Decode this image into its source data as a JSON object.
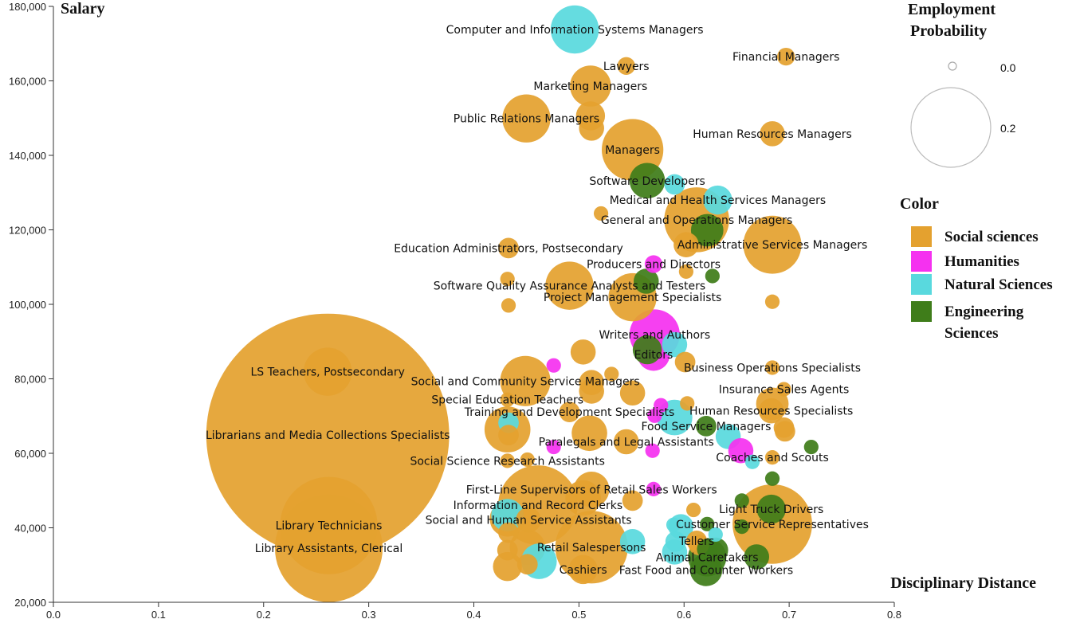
{
  "chart_data": {
    "type": "scatter",
    "title": "",
    "xlabel": "Disciplinary Distance",
    "ylabel": "Salary",
    "xlim": [
      0.0,
      0.8
    ],
    "ylim": [
      20000,
      180000
    ],
    "x_ticks": [
      0.0,
      0.1,
      0.2,
      0.3,
      0.4,
      0.5,
      0.6,
      0.7,
      0.8
    ],
    "x_tick_labels": [
      "0.0",
      "0.1",
      "0.2",
      "0.3",
      "0.4",
      "0.5",
      "0.6",
      "0.7",
      "0.8"
    ],
    "y_ticks": [
      20000,
      40000,
      60000,
      80000,
      100000,
      120000,
      140000,
      160000,
      180000
    ],
    "y_tick_labels": [
      "20,000",
      "40,000",
      "60,000",
      "80,000",
      "100,000",
      "120,000",
      "140,000",
      "160,000",
      "180,000"
    ],
    "grid": false,
    "legend": {
      "size_title_line1": "Employment",
      "size_title_line2": "Probability",
      "size_items": [
        {
          "label": "0.0",
          "value": 0.0
        },
        {
          "label": "0.2",
          "value": 0.2
        }
      ],
      "color_title": "Color",
      "color_items": [
        {
          "name": "Social sciences",
          "color": "#E4A12F"
        },
        {
          "name": "Humanities",
          "color": "#F531F0"
        },
        {
          "name": "Natural Sciences",
          "color": "#59D9DE"
        },
        {
          "name": "Engineering Sciences",
          "color": "#3F7D1A",
          "line1": "Engineering",
          "line2": "Sciences"
        }
      ]
    },
    "points": [
      {
        "name": "Librarians and Media Collections Specialists",
        "x": 0.261,
        "y": 64900,
        "p": 0.28,
        "c": "Social sciences"
      },
      {
        "name": "Library Technicians",
        "x": 0.262,
        "y": 40600,
        "p": 0.045,
        "c": "Social sciences"
      },
      {
        "name": "Library Assistants, Clerical",
        "x": 0.262,
        "y": 34500,
        "p": 0.055,
        "c": "Social sciences"
      },
      {
        "name": "LS Teachers, Postsecondary",
        "x": 0.261,
        "y": 81900,
        "p": 0.011,
        "c": "Social sciences"
      },
      {
        "name": "Computer and Information Systems Managers",
        "x": 0.496,
        "y": 173800,
        "p": 0.011,
        "c": "Natural Sciences"
      },
      {
        "name": "Lawyers",
        "x": 0.545,
        "y": 164000,
        "p": 0.0015,
        "c": "Social sciences"
      },
      {
        "name": "Financial Managers",
        "x": 0.697,
        "y": 166500,
        "p": 0.0015,
        "c": "Social sciences"
      },
      {
        "name": "Marketing Managers",
        "x": 0.511,
        "y": 158600,
        "p": 0.008,
        "c": "Social sciences"
      },
      {
        "name": "",
        "x": 0.511,
        "y": 150600,
        "p": 0.004,
        "c": "Social sciences"
      },
      {
        "name": "Public Relations Managers",
        "x": 0.45,
        "y": 149900,
        "p": 0.011,
        "c": "Social sciences"
      },
      {
        "name": "",
        "x": 0.512,
        "y": 147300,
        "p": 0.003,
        "c": "Social sciences"
      },
      {
        "name": "Human Resources Managers",
        "x": 0.684,
        "y": 145800,
        "p": 0.003,
        "c": "Social sciences"
      },
      {
        "name": "Managers",
        "x": 0.551,
        "y": 141500,
        "p": 0.018,
        "c": "Social sciences"
      },
      {
        "name": "Software Developers",
        "x": 0.565,
        "y": 133200,
        "p": 0.006,
        "c": "Engineering Sciences"
      },
      {
        "name": "",
        "x": 0.591,
        "y": 132200,
        "p": 0.002,
        "c": "Natural Sciences"
      },
      {
        "name": "Medical and Health Services Managers",
        "x": 0.632,
        "y": 128000,
        "p": 0.004,
        "c": "Natural Sciences"
      },
      {
        "name": "",
        "x": 0.521,
        "y": 124400,
        "p": 0.001,
        "c": "Social sciences"
      },
      {
        "name": "General and Operations Managers",
        "x": 0.612,
        "y": 122700,
        "p": 0.02,
        "c": "Social sciences"
      },
      {
        "name": "",
        "x": 0.622,
        "y": 119900,
        "p": 0.005,
        "c": "Engineering Sciences"
      },
      {
        "name": "Administrative Services Managers",
        "x": 0.684,
        "y": 116000,
        "p": 0.016,
        "c": "Social sciences"
      },
      {
        "name": "",
        "x": 0.602,
        "y": 116000,
        "p": 0.003,
        "c": "Social sciences"
      },
      {
        "name": "Education Administrators, Postsecondary",
        "x": 0.433,
        "y": 115100,
        "p": 0.002,
        "c": "Social sciences"
      },
      {
        "name": "Producers and Directors",
        "x": 0.571,
        "y": 110800,
        "p": 0.0015,
        "c": "Humanities"
      },
      {
        "name": "",
        "x": 0.602,
        "y": 108800,
        "p": 0.001,
        "c": "Social sciences"
      },
      {
        "name": "",
        "x": 0.627,
        "y": 107600,
        "p": 0.001,
        "c": "Engineering Sciences"
      },
      {
        "name": "",
        "x": 0.432,
        "y": 106800,
        "p": 0.001,
        "c": "Social sciences"
      },
      {
        "name": "",
        "x": 0.564,
        "y": 106200,
        "p": 0.003,
        "c": "Engineering Sciences"
      },
      {
        "name": "Software Quality Assurance Analysts and Testers",
        "x": 0.491,
        "y": 105000,
        "p": 0.011,
        "c": "Social sciences"
      },
      {
        "name": "Project Management Specialists",
        "x": 0.551,
        "y": 101900,
        "p": 0.011,
        "c": "Social sciences"
      },
      {
        "name": "",
        "x": 0.684,
        "y": 100700,
        "p": 0.001,
        "c": "Social sciences"
      },
      {
        "name": "",
        "x": 0.433,
        "y": 99700,
        "p": 0.001,
        "c": "Social sciences"
      },
      {
        "name": "Writers and Authors",
        "x": 0.572,
        "y": 91900,
        "p": 0.012,
        "c": "Humanities"
      },
      {
        "name": "",
        "x": 0.591,
        "y": 89200,
        "p": 0.003,
        "c": "Natural Sciences"
      },
      {
        "name": "",
        "x": 0.565,
        "y": 87800,
        "p": 0.004,
        "c": "Engineering Sciences"
      },
      {
        "name": "",
        "x": 0.504,
        "y": 87200,
        "p": 0.003,
        "c": "Social sciences"
      },
      {
        "name": "Editors",
        "x": 0.571,
        "y": 86500,
        "p": 0.005,
        "c": "Humanities"
      },
      {
        "name": "",
        "x": 0.601,
        "y": 84500,
        "p": 0.002,
        "c": "Social sciences"
      },
      {
        "name": "",
        "x": 0.476,
        "y": 83600,
        "p": 0.001,
        "c": "Humanities"
      },
      {
        "name": "Business Operations Specialists",
        "x": 0.684,
        "y": 83000,
        "p": 0.001,
        "c": "Social sciences"
      },
      {
        "name": "",
        "x": 0.531,
        "y": 81300,
        "p": 0.001,
        "c": "Social sciences"
      },
      {
        "name": "Social and Community Service Managers",
        "x": 0.449,
        "y": 79400,
        "p": 0.012,
        "c": "Social sciences"
      },
      {
        "name": "",
        "x": 0.512,
        "y": 79000,
        "p": 0.003,
        "c": "Social sciences"
      },
      {
        "name": "",
        "x": 0.512,
        "y": 76700,
        "p": 0.003,
        "c": "Social sciences"
      },
      {
        "name": "Insurance Sales Agents",
        "x": 0.695,
        "y": 77200,
        "p": 0.001,
        "c": "Social sciences"
      },
      {
        "name": "",
        "x": 0.551,
        "y": 76200,
        "p": 0.003,
        "c": "Social sciences"
      },
      {
        "name": "Special Education Teachers",
        "x": 0.432,
        "y": 74400,
        "p": 0.001,
        "c": "Social sciences"
      },
      {
        "name": "",
        "x": 0.684,
        "y": 73300,
        "p": 0.005,
        "c": "Social sciences"
      },
      {
        "name": "",
        "x": 0.578,
        "y": 72900,
        "p": 0.001,
        "c": "Humanities"
      },
      {
        "name": "",
        "x": 0.603,
        "y": 73400,
        "p": 0.001,
        "c": "Social sciences"
      },
      {
        "name": "Human Resources Specialists",
        "x": 0.683,
        "y": 71400,
        "p": 0.003,
        "c": "Social sciences"
      },
      {
        "name": "Training and Development Specialists",
        "x": 0.491,
        "y": 71100,
        "p": 0.002,
        "c": "Social sciences"
      },
      {
        "name": "",
        "x": 0.572,
        "y": 70100,
        "p": 0.001,
        "c": "Humanities"
      },
      {
        "name": "",
        "x": 0.591,
        "y": 69600,
        "p": 0.006,
        "c": "Natural Sciences"
      },
      {
        "name": "",
        "x": 0.433,
        "y": 68200,
        "p": 0.002,
        "c": "Natural Sciences"
      },
      {
        "name": "Food Service Managers",
        "x": 0.621,
        "y": 67300,
        "p": 0.002,
        "c": "Engineering Sciences"
      },
      {
        "name": "",
        "x": 0.695,
        "y": 66900,
        "p": 0.002,
        "c": "Social sciences"
      },
      {
        "name": "",
        "x": 0.696,
        "y": 65900,
        "p": 0.002,
        "c": "Social sciences"
      },
      {
        "name": "",
        "x": 0.432,
        "y": 66400,
        "p": 0.01,
        "c": "Social sciences"
      },
      {
        "name": "",
        "x": 0.51,
        "y": 65400,
        "p": 0.006,
        "c": "Social sciences"
      },
      {
        "name": "",
        "x": 0.433,
        "y": 64900,
        "p": 0.002,
        "c": "Social sciences"
      },
      {
        "name": "",
        "x": 0.642,
        "y": 64500,
        "p": 0.003,
        "c": "Natural Sciences"
      },
      {
        "name": "Paralegals and Legal Assistants",
        "x": 0.545,
        "y": 63100,
        "p": 0.003,
        "c": "Social sciences"
      },
      {
        "name": "",
        "x": 0.476,
        "y": 61700,
        "p": 0.001,
        "c": "Humanities"
      },
      {
        "name": "",
        "x": 0.721,
        "y": 61700,
        "p": 0.001,
        "c": "Engineering Sciences"
      },
      {
        "name": "",
        "x": 0.57,
        "y": 60700,
        "p": 0.001,
        "c": "Humanities"
      },
      {
        "name": "",
        "x": 0.654,
        "y": 60700,
        "p": 0.003,
        "c": "Humanities"
      },
      {
        "name": "Social Science Research Assistants",
        "x": 0.432,
        "y": 58000,
        "p": 0.001,
        "c": "Social sciences"
      },
      {
        "name": "",
        "x": 0.451,
        "y": 58300,
        "p": 0.001,
        "c": "Social sciences"
      },
      {
        "name": "Coaches and Scouts",
        "x": 0.684,
        "y": 58900,
        "p": 0.001,
        "c": "Social sciences"
      },
      {
        "name": "",
        "x": 0.665,
        "y": 57700,
        "p": 0.001,
        "c": "Natural Sciences"
      },
      {
        "name": "",
        "x": 0.684,
        "y": 53200,
        "p": 0.001,
        "c": "Engineering Sciences"
      },
      {
        "name": "First-Line Supervisors of Retail Sales Workers",
        "x": 0.512,
        "y": 50300,
        "p": 0.006,
        "c": "Social sciences"
      },
      {
        "name": "",
        "x": 0.571,
        "y": 50400,
        "p": 0.001,
        "c": "Humanities"
      },
      {
        "name": "",
        "x": 0.504,
        "y": 48000,
        "p": 0.006,
        "c": "Social sciences"
      },
      {
        "name": "",
        "x": 0.551,
        "y": 47300,
        "p": 0.002,
        "c": "Social sciences"
      },
      {
        "name": "",
        "x": 0.655,
        "y": 47300,
        "p": 0.001,
        "c": "Engineering Sciences"
      },
      {
        "name": "Information and Record Clerks",
        "x": 0.461,
        "y": 46100,
        "p": 0.03,
        "c": "Social sciences"
      },
      {
        "name": "",
        "x": 0.609,
        "y": 44800,
        "p": 0.001,
        "c": "Social sciences"
      },
      {
        "name": "Light Truck Drivers",
        "x": 0.683,
        "y": 45000,
        "p": 0.004,
        "c": "Engineering Sciences"
      },
      {
        "name": "",
        "x": 0.432,
        "y": 43400,
        "p": 0.005,
        "c": "Natural Sciences"
      },
      {
        "name": "",
        "x": 0.432,
        "y": 42400,
        "p": 0.006,
        "c": "Social sciences"
      },
      {
        "name": "Social and Human Service Assistants",
        "x": 0.452,
        "y": 42100,
        "p": 0.003,
        "c": "Social sciences"
      },
      {
        "name": "Customer Service Representatives",
        "x": 0.684,
        "y": 41000,
        "p": 0.03,
        "c": "Social sciences"
      },
      {
        "name": "",
        "x": 0.59,
        "y": 40800,
        "p": 0.001,
        "c": "Natural Sciences"
      },
      {
        "name": "",
        "x": 0.597,
        "y": 40300,
        "p": 0.003,
        "c": "Natural Sciences"
      },
      {
        "name": "",
        "x": 0.622,
        "y": 41000,
        "p": 0.001,
        "c": "Engineering Sciences"
      },
      {
        "name": "",
        "x": 0.655,
        "y": 40300,
        "p": 0.001,
        "c": "Engineering Sciences"
      },
      {
        "name": "",
        "x": 0.433,
        "y": 38700,
        "p": 0.002,
        "c": "Social sciences"
      },
      {
        "name": "",
        "x": 0.63,
        "y": 38200,
        "p": 0.001,
        "c": "Natural Sciences"
      },
      {
        "name": "Tellers",
        "x": 0.612,
        "y": 36500,
        "p": 0.002,
        "c": "Social sciences"
      },
      {
        "name": "",
        "x": 0.551,
        "y": 36300,
        "p": 0.003,
        "c": "Natural Sciences"
      },
      {
        "name": "",
        "x": 0.592,
        "y": 36300,
        "p": 0.002,
        "c": "Natural Sciences"
      },
      {
        "name": "",
        "x": 0.614,
        "y": 35400,
        "p": 0.002,
        "c": "Social sciences"
      },
      {
        "name": "Retail Salespersons",
        "x": 0.512,
        "y": 34800,
        "p": 0.025,
        "c": "Social sciences"
      },
      {
        "name": "",
        "x": 0.451,
        "y": 34700,
        "p": 0.006,
        "c": "Social sciences"
      },
      {
        "name": "",
        "x": 0.432,
        "y": 34000,
        "p": 0.002,
        "c": "Social sciences"
      },
      {
        "name": "",
        "x": 0.622,
        "y": 34300,
        "p": 0.002,
        "c": "Engineering Sciences"
      },
      {
        "name": "",
        "x": 0.63,
        "y": 34000,
        "p": 0.003,
        "c": "Engineering Sciences"
      },
      {
        "name": "",
        "x": 0.591,
        "y": 33500,
        "p": 0.003,
        "c": "Natural Sciences"
      },
      {
        "name": "Animal Caretakers",
        "x": 0.622,
        "y": 32100,
        "p": 0.007,
        "c": "Engineering Sciences"
      },
      {
        "name": "",
        "x": 0.669,
        "y": 32200,
        "p": 0.003,
        "c": "Engineering Sciences"
      },
      {
        "name": "",
        "x": 0.462,
        "y": 31000,
        "p": 0.006,
        "c": "Natural Sciences"
      },
      {
        "name": "",
        "x": 0.451,
        "y": 30200,
        "p": 0.002,
        "c": "Social sciences"
      },
      {
        "name": "",
        "x": 0.432,
        "y": 29600,
        "p": 0.004,
        "c": "Social sciences"
      },
      {
        "name": "Cashiers",
        "x": 0.504,
        "y": 28800,
        "p": 0.004,
        "c": "Social sciences"
      },
      {
        "name": "Fast Food and Counter Workers",
        "x": 0.621,
        "y": 28700,
        "p": 0.005,
        "c": "Engineering Sciences"
      }
    ]
  }
}
